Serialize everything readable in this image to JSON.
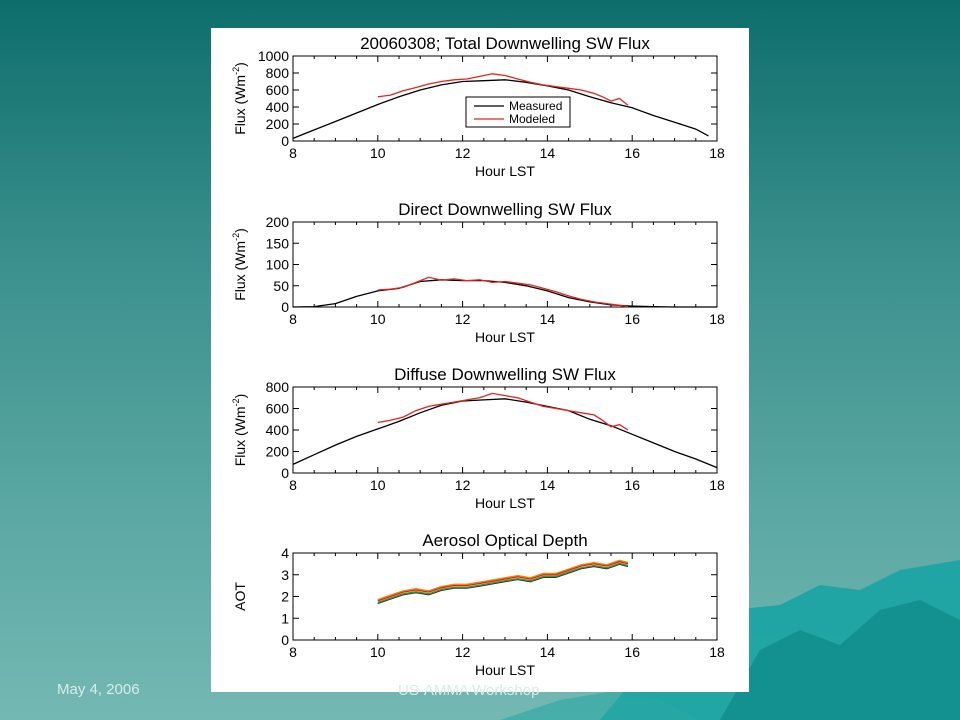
{
  "footer": {
    "date": "May 4, 2006",
    "workshop": "US-AMMA Workshop"
  },
  "colors": {
    "measured": "#000000",
    "modeled": "#e8231f",
    "aot_red": "#e8231f",
    "aot_orange": "#f08a00",
    "aot_green": "#3a9a3a"
  },
  "chart_data": [
    {
      "type": "line",
      "title": "20060308; Total Downwelling SW Flux",
      "xlabel": "Hour LST",
      "ylabel_main": "Flux (Wm",
      "ylabel_sup": "-2",
      "ylabel_end": ")",
      "xlim": [
        8,
        18
      ],
      "ylim": [
        0,
        1000
      ],
      "xticks": [
        8,
        10,
        12,
        14,
        16,
        18
      ],
      "yticks": [
        0,
        200,
        400,
        600,
        800,
        1000
      ],
      "legend": {
        "position": "center",
        "entries": [
          "Measured",
          "Modeled"
        ]
      },
      "series": [
        {
          "name": "Measured",
          "x": [
            8.0,
            8.5,
            9.0,
            9.5,
            10.0,
            10.5,
            11.0,
            11.5,
            12.0,
            12.5,
            13.0,
            13.5,
            14.0,
            14.5,
            15.0,
            15.5,
            16.0,
            16.5,
            17.0,
            17.5,
            17.8
          ],
          "y": [
            30,
            130,
            230,
            330,
            430,
            520,
            600,
            660,
            700,
            710,
            720,
            690,
            650,
            600,
            520,
            450,
            390,
            300,
            220,
            140,
            60
          ]
        },
        {
          "name": "Modeled",
          "x": [
            10.0,
            10.3,
            10.6,
            10.9,
            11.2,
            11.5,
            11.8,
            12.1,
            12.4,
            12.7,
            13.0,
            13.3,
            13.6,
            13.9,
            14.2,
            14.5,
            14.8,
            15.1,
            15.3,
            15.5,
            15.7,
            15.9
          ],
          "y": [
            520,
            540,
            590,
            630,
            670,
            700,
            720,
            730,
            760,
            790,
            770,
            730,
            690,
            660,
            640,
            620,
            600,
            560,
            520,
            470,
            500,
            420
          ]
        }
      ]
    },
    {
      "type": "line",
      "title": "Direct Downwelling SW Flux",
      "xlabel": "Hour LST",
      "ylabel_main": "Flux (Wm",
      "ylabel_sup": "-2",
      "ylabel_end": ")",
      "xlim": [
        8,
        18
      ],
      "ylim": [
        0,
        200
      ],
      "xticks": [
        8,
        10,
        12,
        14,
        16,
        18
      ],
      "yticks": [
        0,
        50,
        100,
        150,
        200
      ],
      "series": [
        {
          "name": "Measured",
          "x": [
            8.0,
            8.5,
            9.0,
            9.5,
            10.0,
            10.5,
            11.0,
            11.5,
            12.0,
            12.5,
            13.0,
            13.5,
            14.0,
            14.5,
            15.0,
            15.5,
            16.0,
            16.5,
            17.0,
            17.5,
            18.0
          ],
          "y": [
            0,
            1,
            8,
            25,
            38,
            44,
            60,
            64,
            62,
            62,
            58,
            50,
            38,
            22,
            12,
            5,
            2,
            1,
            0,
            0,
            0
          ]
        },
        {
          "name": "Modeled",
          "x": [
            10.0,
            10.3,
            10.6,
            10.9,
            11.2,
            11.5,
            11.8,
            12.1,
            12.4,
            12.7,
            13.0,
            13.3,
            13.6,
            13.9,
            14.2,
            14.5,
            14.8,
            15.1,
            15.4,
            15.7,
            15.9
          ],
          "y": [
            40,
            42,
            46,
            58,
            70,
            63,
            66,
            62,
            64,
            58,
            60,
            56,
            52,
            44,
            36,
            26,
            18,
            12,
            8,
            4,
            1
          ]
        }
      ]
    },
    {
      "type": "line",
      "title": "Diffuse Downwelling SW Flux",
      "xlabel": "Hour LST",
      "ylabel_main": "Flux (Wm",
      "ylabel_sup": "-2",
      "ylabel_end": ")",
      "xlim": [
        8,
        18
      ],
      "ylim": [
        0,
        800
      ],
      "xticks": [
        8,
        10,
        12,
        14,
        16,
        18
      ],
      "yticks": [
        0,
        200,
        400,
        600,
        800
      ],
      "series": [
        {
          "name": "Measured",
          "x": [
            8.0,
            8.5,
            9.0,
            9.5,
            10.0,
            10.5,
            11.0,
            11.5,
            12.0,
            12.5,
            13.0,
            13.5,
            14.0,
            14.5,
            15.0,
            15.5,
            16.0,
            16.5,
            17.0,
            17.5,
            18.0
          ],
          "y": [
            80,
            170,
            260,
            340,
            410,
            480,
            560,
            630,
            670,
            680,
            690,
            660,
            620,
            580,
            500,
            440,
            360,
            280,
            200,
            130,
            50
          ]
        },
        {
          "name": "Modeled",
          "x": [
            10.0,
            10.3,
            10.6,
            10.9,
            11.2,
            11.5,
            11.8,
            12.1,
            12.4,
            12.7,
            13.0,
            13.3,
            13.6,
            13.9,
            14.2,
            14.5,
            14.8,
            15.1,
            15.3,
            15.5,
            15.7,
            15.9
          ],
          "y": [
            470,
            490,
            520,
            580,
            620,
            640,
            660,
            680,
            700,
            740,
            720,
            700,
            660,
            620,
            600,
            580,
            560,
            540,
            490,
            430,
            450,
            400
          ]
        }
      ]
    },
    {
      "type": "line",
      "title": "Aerosol Optical Depth",
      "xlabel": "Hour LST",
      "ylabel_main": "AOT",
      "ylabel_sup": "",
      "ylabel_end": "",
      "xlim": [
        8,
        18
      ],
      "ylim": [
        0,
        4
      ],
      "xticks": [
        8,
        10,
        12,
        14,
        16,
        18
      ],
      "yticks": [
        0,
        1,
        2,
        3,
        4
      ],
      "series": [
        {
          "x": [
            10.0,
            10.3,
            10.6,
            10.9,
            11.2,
            11.5,
            11.8,
            12.1,
            12.4,
            12.7,
            13.0,
            13.3,
            13.6,
            13.9,
            14.2,
            14.5,
            14.8,
            15.1,
            15.4,
            15.7,
            15.9
          ],
          "y": [
            1.8,
            2.0,
            2.2,
            2.3,
            2.2,
            2.4,
            2.5,
            2.5,
            2.6,
            2.7,
            2.8,
            2.9,
            2.8,
            3.0,
            3.0,
            3.2,
            3.4,
            3.5,
            3.4,
            3.6,
            3.5
          ]
        }
      ]
    }
  ]
}
